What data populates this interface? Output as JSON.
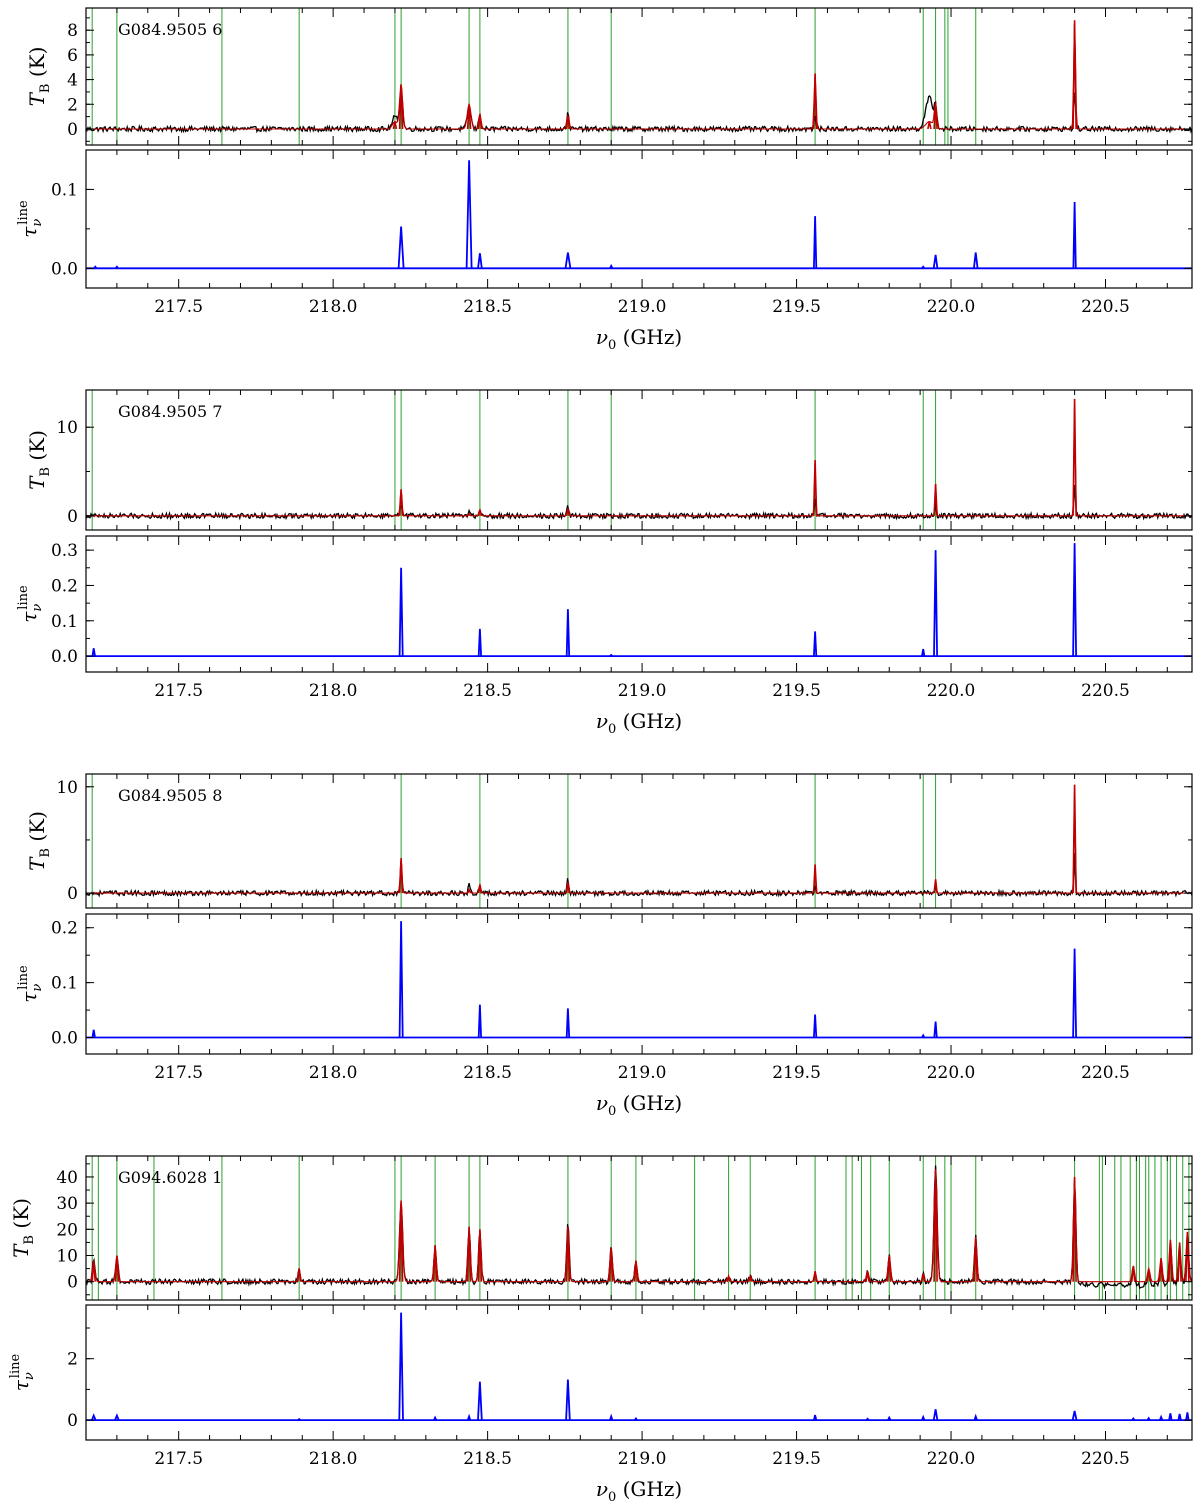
{
  "colors": {
    "observed": "#000000",
    "model": "#c00000",
    "tau": "#0000ff",
    "marker": "#2ca02c"
  },
  "labels": {
    "xlabel": "ν0 (GHz)",
    "tb_ylabel": "TB (K)",
    "tau_ylabel": "τνline"
  },
  "x_range": [
    217.2,
    220.78
  ],
  "x_ticks": [
    217.5,
    218.0,
    218.5,
    219.0,
    219.5,
    220.0,
    220.5
  ],
  "chart_data": [
    {
      "type": "line",
      "title": "G084.9505 6",
      "tb": {
        "ylim": [
          -1.3,
          9.8
        ],
        "yticks": [
          0,
          2,
          4,
          6,
          8
        ],
        "series": [
          "observed",
          "model"
        ],
        "lines": [
          {
            "x": 218.22,
            "obs": 3.2,
            "model": 3.6,
            "w": 0.005
          },
          {
            "x": 218.2,
            "obs": 1.0,
            "model": 0.6,
            "w": 0.008
          },
          {
            "x": 218.44,
            "obs": 1.8,
            "model": 2.0,
            "w": 0.006
          },
          {
            "x": 218.475,
            "obs": 1.1,
            "model": 1.2,
            "w": 0.004
          },
          {
            "x": 218.76,
            "obs": 1.2,
            "model": 1.1,
            "w": 0.004
          },
          {
            "x": 219.56,
            "obs": 0.9,
            "model": 4.5,
            "w": 0.003
          },
          {
            "x": 219.93,
            "obs": 2.5,
            "model": 0.6,
            "w": 0.012
          },
          {
            "x": 219.95,
            "obs": 1.5,
            "model": 2.0,
            "w": 0.004
          },
          {
            "x": 220.4,
            "obs": 3.0,
            "model": 8.8,
            "w": 0.003
          }
        ],
        "markers": [
          217.22,
          217.3,
          217.64,
          217.89,
          218.2,
          218.22,
          218.44,
          218.475,
          218.76,
          218.9,
          219.56,
          219.91,
          219.95,
          219.98,
          219.99,
          220.08
        ]
      },
      "tau": {
        "ylim": [
          -0.025,
          0.15
        ],
        "yticks": [
          0.0,
          0.1
        ],
        "lines": [
          {
            "x": 217.23,
            "v": 0.002,
            "w": 0.002
          },
          {
            "x": 217.3,
            "v": 0.002,
            "w": 0.002
          },
          {
            "x": 218.22,
            "v": 0.053,
            "w": 0.004
          },
          {
            "x": 218.44,
            "v": 0.137,
            "w": 0.004
          },
          {
            "x": 218.475,
            "v": 0.019,
            "w": 0.003
          },
          {
            "x": 218.76,
            "v": 0.02,
            "w": 0.004
          },
          {
            "x": 218.9,
            "v": 0.003,
            "w": 0.002
          },
          {
            "x": 219.56,
            "v": 0.066,
            "w": 0.002
          },
          {
            "x": 219.91,
            "v": 0.002,
            "w": 0.002
          },
          {
            "x": 219.95,
            "v": 0.017,
            "w": 0.003
          },
          {
            "x": 220.08,
            "v": 0.02,
            "w": 0.003
          },
          {
            "x": 220.4,
            "v": 0.084,
            "w": 0.002
          }
        ]
      }
    },
    {
      "type": "line",
      "title": "G084.9505 7",
      "tb": {
        "ylim": [
          -1.6,
          14.2
        ],
        "yticks": [
          0,
          10
        ],
        "series": [
          "observed",
          "model"
        ],
        "lines": [
          {
            "x": 218.22,
            "obs": 1.2,
            "model": 3.0,
            "w": 0.003
          },
          {
            "x": 218.44,
            "obs": 0.8,
            "model": 0.2,
            "w": 0.003
          },
          {
            "x": 218.475,
            "obs": 0.5,
            "model": 0.7,
            "w": 0.003
          },
          {
            "x": 218.76,
            "obs": 1.0,
            "model": 0.8,
            "w": 0.003
          },
          {
            "x": 219.56,
            "obs": 2.0,
            "model": 6.3,
            "w": 0.002
          },
          {
            "x": 219.95,
            "obs": 1.5,
            "model": 3.6,
            "w": 0.002
          },
          {
            "x": 220.4,
            "obs": 4.0,
            "model": 13.2,
            "w": 0.002
          }
        ],
        "markers": [
          217.22,
          218.2,
          218.22,
          218.475,
          218.76,
          218.9,
          219.56,
          219.91,
          219.95
        ]
      },
      "tau": {
        "ylim": [
          -0.045,
          0.34
        ],
        "yticks": [
          0.0,
          0.1,
          0.2,
          0.3
        ],
        "lines": [
          {
            "x": 217.225,
            "v": 0.022,
            "w": 0.002
          },
          {
            "x": 218.22,
            "v": 0.25,
            "w": 0.0025
          },
          {
            "x": 218.475,
            "v": 0.077,
            "w": 0.002
          },
          {
            "x": 218.76,
            "v": 0.133,
            "w": 0.002
          },
          {
            "x": 218.9,
            "v": 0.003,
            "w": 0.002
          },
          {
            "x": 219.56,
            "v": 0.07,
            "w": 0.002
          },
          {
            "x": 219.91,
            "v": 0.02,
            "w": 0.0015
          },
          {
            "x": 219.95,
            "v": 0.3,
            "w": 0.0025
          },
          {
            "x": 220.4,
            "v": 0.32,
            "w": 0.0025
          }
        ]
      }
    },
    {
      "type": "line",
      "title": "G084.9505 8",
      "tb": {
        "ylim": [
          -1.4,
          11.2
        ],
        "yticks": [
          0,
          10
        ],
        "series": [
          "observed",
          "model"
        ],
        "lines": [
          {
            "x": 218.22,
            "obs": 1.8,
            "model": 3.3,
            "w": 0.003
          },
          {
            "x": 218.44,
            "obs": 0.9,
            "model": 0.3,
            "w": 0.003
          },
          {
            "x": 218.475,
            "obs": 0.6,
            "model": 0.8,
            "w": 0.003
          },
          {
            "x": 218.76,
            "obs": 1.3,
            "model": 1.0,
            "w": 0.003
          },
          {
            "x": 219.56,
            "obs": 0.5,
            "model": 2.7,
            "w": 0.002
          },
          {
            "x": 219.95,
            "obs": 0.8,
            "model": 1.3,
            "w": 0.002
          },
          {
            "x": 220.4,
            "obs": 4.0,
            "model": 10.2,
            "w": 0.002
          }
        ],
        "markers": [
          217.22,
          218.22,
          218.475,
          218.76,
          219.56,
          219.91,
          219.95
        ]
      },
      "tau": {
        "ylim": [
          -0.03,
          0.225
        ],
        "yticks": [
          0.0,
          0.1,
          0.2
        ],
        "lines": [
          {
            "x": 217.225,
            "v": 0.014,
            "w": 0.002
          },
          {
            "x": 218.22,
            "v": 0.212,
            "w": 0.0025
          },
          {
            "x": 218.475,
            "v": 0.06,
            "w": 0.002
          },
          {
            "x": 218.76,
            "v": 0.053,
            "w": 0.002
          },
          {
            "x": 219.56,
            "v": 0.042,
            "w": 0.002
          },
          {
            "x": 219.91,
            "v": 0.004,
            "w": 0.0015
          },
          {
            "x": 219.95,
            "v": 0.029,
            "w": 0.002
          },
          {
            "x": 220.4,
            "v": 0.162,
            "w": 0.0025
          }
        ]
      }
    },
    {
      "type": "line",
      "title": "G094.6028 1",
      "tb": {
        "ylim": [
          -7.0,
          48.0
        ],
        "yticks": [
          0,
          10,
          20,
          30,
          40
        ],
        "series": [
          "observed",
          "model"
        ],
        "lines": [
          {
            "x": 217.225,
            "obs": 8,
            "model": 8,
            "w": 0.004
          },
          {
            "x": 217.3,
            "obs": 10,
            "model": 10,
            "w": 0.004
          },
          {
            "x": 217.89,
            "obs": 5,
            "model": 5,
            "w": 0.003
          },
          {
            "x": 218.22,
            "obs": 30,
            "model": 31,
            "w": 0.005
          },
          {
            "x": 218.33,
            "obs": 13,
            "model": 14,
            "w": 0.004
          },
          {
            "x": 218.44,
            "obs": 21,
            "model": 21,
            "w": 0.004
          },
          {
            "x": 218.475,
            "obs": 20,
            "model": 20,
            "w": 0.004
          },
          {
            "x": 218.76,
            "obs": 22,
            "model": 21,
            "w": 0.004
          },
          {
            "x": 218.9,
            "obs": 13,
            "model": 13,
            "w": 0.004
          },
          {
            "x": 218.98,
            "obs": 8,
            "model": 8,
            "w": 0.004
          },
          {
            "x": 219.28,
            "obs": 2,
            "model": 2,
            "w": 0.004
          },
          {
            "x": 219.35,
            "obs": 2,
            "model": 2,
            "w": 0.004
          },
          {
            "x": 219.56,
            "obs": 3,
            "model": 4,
            "w": 0.003
          },
          {
            "x": 219.73,
            "obs": 4,
            "model": 4,
            "w": 0.004
          },
          {
            "x": 219.8,
            "obs": 10,
            "model": 10,
            "w": 0.004
          },
          {
            "x": 219.91,
            "obs": 3,
            "model": 3,
            "w": 0.003
          },
          {
            "x": 219.95,
            "obs": 44,
            "model": 43,
            "w": 0.005
          },
          {
            "x": 220.08,
            "obs": 17,
            "model": 17,
            "w": 0.004
          },
          {
            "x": 220.4,
            "obs": 40,
            "model": 40,
            "w": 0.004
          },
          {
            "x": 220.59,
            "obs": 6,
            "model": 6,
            "w": 0.004
          },
          {
            "x": 220.64,
            "obs": 4,
            "model": 5,
            "w": 0.004
          },
          {
            "x": 220.68,
            "obs": 8,
            "model": 9,
            "w": 0.004
          },
          {
            "x": 220.71,
            "obs": 15,
            "model": 16,
            "w": 0.004
          },
          {
            "x": 220.74,
            "obs": 13,
            "model": 15,
            "w": 0.004
          },
          {
            "x": 220.765,
            "obs": 18,
            "model": 19,
            "w": 0.004
          }
        ],
        "markers": [
          217.22,
          217.24,
          217.3,
          217.42,
          217.64,
          217.89,
          218.2,
          218.22,
          218.33,
          218.44,
          218.475,
          218.76,
          218.9,
          218.98,
          219.17,
          219.28,
          219.35,
          219.56,
          219.66,
          219.68,
          219.71,
          219.74,
          219.8,
          219.91,
          219.95,
          219.98,
          220.0,
          220.08,
          220.4,
          220.48,
          220.49,
          220.53,
          220.55,
          220.58,
          220.6,
          220.61,
          220.63,
          220.64,
          220.66,
          220.68,
          220.7,
          220.71,
          220.73,
          220.75,
          220.77
        ]
      },
      "tau": {
        "ylim": [
          -0.65,
          3.75
        ],
        "yticks": [
          0,
          2
        ],
        "lines": [
          {
            "x": 217.225,
            "v": 0.15,
            "w": 0.003
          },
          {
            "x": 217.3,
            "v": 0.15,
            "w": 0.003
          },
          {
            "x": 217.89,
            "v": 0.03,
            "w": 0.002
          },
          {
            "x": 218.22,
            "v": 3.5,
            "w": 0.003
          },
          {
            "x": 218.33,
            "v": 0.08,
            "w": 0.002
          },
          {
            "x": 218.44,
            "v": 0.12,
            "w": 0.002
          },
          {
            "x": 218.475,
            "v": 1.25,
            "w": 0.003
          },
          {
            "x": 218.76,
            "v": 1.32,
            "w": 0.003
          },
          {
            "x": 218.9,
            "v": 0.12,
            "w": 0.002
          },
          {
            "x": 218.98,
            "v": 0.05,
            "w": 0.002
          },
          {
            "x": 219.56,
            "v": 0.16,
            "w": 0.002
          },
          {
            "x": 219.73,
            "v": 0.04,
            "w": 0.002
          },
          {
            "x": 219.8,
            "v": 0.08,
            "w": 0.002
          },
          {
            "x": 219.91,
            "v": 0.1,
            "w": 0.002
          },
          {
            "x": 219.95,
            "v": 0.35,
            "w": 0.003
          },
          {
            "x": 220.08,
            "v": 0.12,
            "w": 0.002
          },
          {
            "x": 220.4,
            "v": 0.3,
            "w": 0.003
          },
          {
            "x": 220.59,
            "v": 0.05,
            "w": 0.002
          },
          {
            "x": 220.64,
            "v": 0.06,
            "w": 0.002
          },
          {
            "x": 220.68,
            "v": 0.1,
            "w": 0.002
          },
          {
            "x": 220.71,
            "v": 0.22,
            "w": 0.002
          },
          {
            "x": 220.74,
            "v": 0.2,
            "w": 0.002
          },
          {
            "x": 220.765,
            "v": 0.25,
            "w": 0.002
          }
        ]
      }
    }
  ]
}
